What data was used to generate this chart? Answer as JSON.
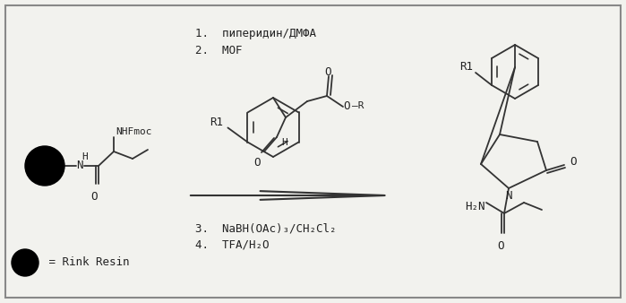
{
  "bg_color": "#f2f2ee",
  "border_color": "#888888",
  "line_color": "#333333",
  "text_color": "#222222",
  "step1": "1.  пиперидин/ДМФА",
  "step2": "2.  MOF",
  "step3": "3.  NaBH(OAc)₃/CH₂Cl₂",
  "step4": "4.  TFA/H₂O",
  "legend": " = Rink Resin"
}
